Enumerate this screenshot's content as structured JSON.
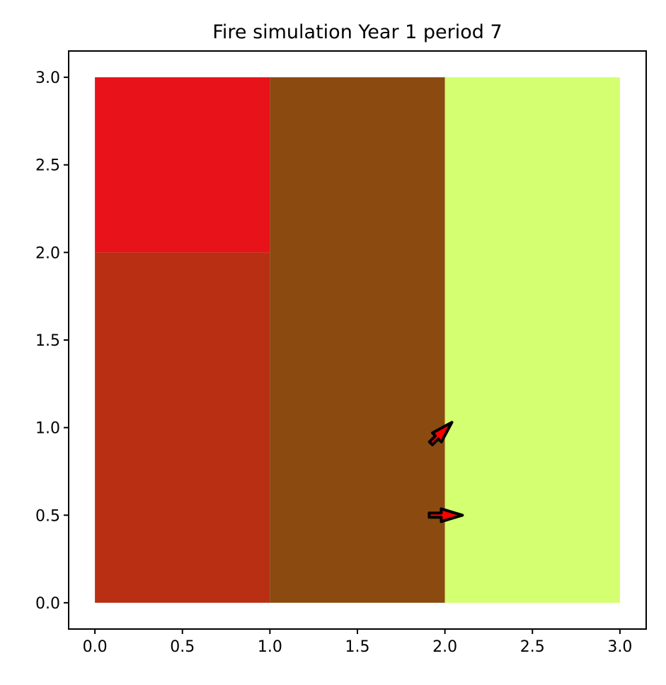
{
  "chart_data": {
    "type": "heatmap",
    "title": "Fire simulation Year 1 period 7",
    "xlabel": "",
    "ylabel": "",
    "xlim": [
      -0.15,
      3.15
    ],
    "ylim": [
      -0.15,
      3.15
    ],
    "xticks": [
      0.0,
      0.5,
      1.0,
      1.5,
      2.0,
      2.5,
      3.0
    ],
    "yticks": [
      0.0,
      0.5,
      1.0,
      1.5,
      2.0,
      2.5,
      3.0
    ],
    "xtick_labels": [
      "0.0",
      "0.5",
      "1.0",
      "1.5",
      "2.0",
      "2.5",
      "3.0"
    ],
    "ytick_labels": [
      "0.0",
      "0.5",
      "1.0",
      "1.5",
      "2.0",
      "2.5",
      "3.0"
    ],
    "grid": false,
    "cells": [
      {
        "x0": 0,
        "x1": 1,
        "y0": 2,
        "y1": 3,
        "color": "#e8121a"
      },
      {
        "x0": 0,
        "x1": 1,
        "y0": 0,
        "y1": 2,
        "color": "#b82f14"
      },
      {
        "x0": 1,
        "x1": 2,
        "y0": 0,
        "y1": 3,
        "color": "#8b4b10"
      },
      {
        "x0": 2,
        "x1": 3,
        "y0": 0,
        "y1": 3,
        "color": "#d3ff70"
      }
    ],
    "arrows": [
      {
        "x": 1.92,
        "y": 0.91,
        "dx": 0.12,
        "dy": 0.12,
        "color": "#ff0000",
        "edge": "#000000"
      },
      {
        "x": 1.91,
        "y": 0.5,
        "dx": 0.19,
        "dy": 0.0,
        "color": "#ff0000",
        "edge": "#000000"
      }
    ]
  }
}
